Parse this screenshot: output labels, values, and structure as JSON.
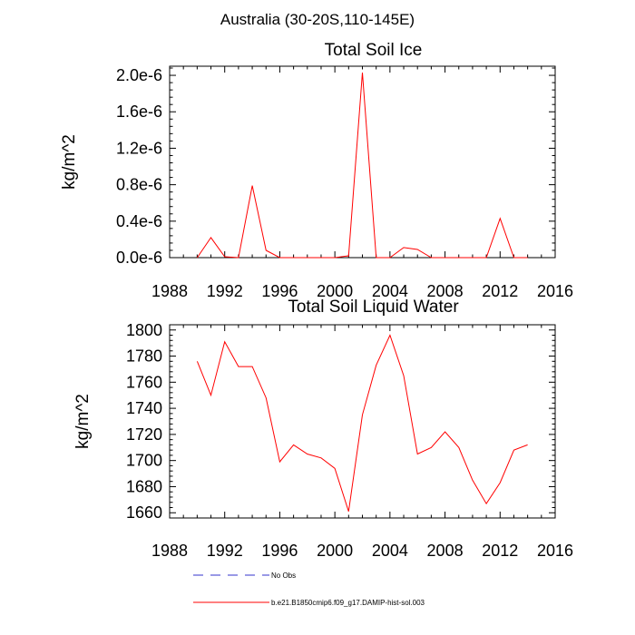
{
  "figure_title": "Australia (30-20S,110-145E)",
  "legend": {
    "entries": [
      {
        "label": "No Obs",
        "color": "#3333cc",
        "style": "dashed"
      },
      {
        "label": "b.e21.B1850cmip6.f09_g17.DAMIP-hist-sol.003",
        "color": "#ff0000",
        "style": "solid"
      }
    ]
  },
  "chart_data": [
    {
      "type": "line",
      "title": "Total Soil Ice",
      "xlabel": "",
      "ylabel": "kg/m^2",
      "xlim": [
        1988,
        2016
      ],
      "ylim": [
        0,
        2.1e-06
      ],
      "x_ticks": [
        1988,
        1992,
        1996,
        2000,
        2004,
        2008,
        2012,
        2016
      ],
      "x_tick_labels": [
        "1988",
        "1992",
        "1996",
        "2000",
        "2004",
        "2008",
        "2012",
        "2016"
      ],
      "y_ticks": [
        0,
        4e-07,
        8e-07,
        1.2e-06,
        1.6e-06,
        2e-06
      ],
      "y_tick_labels": [
        "0.0e-6",
        "0.4e-6",
        "0.8e-6",
        "1.2e-6",
        "1.6e-6",
        "2.0e-6"
      ],
      "grid": false,
      "series": [
        {
          "name": "b.e21.B1850cmip6.f09_g17.DAMIP-hist-sol.003",
          "color": "#ff0000",
          "x": [
            1990,
            1991,
            1992,
            1993,
            1994,
            1995,
            1996,
            1997,
            1998,
            1999,
            2000,
            2001,
            2002,
            2003,
            2004,
            2005,
            2006,
            2007,
            2008,
            2009,
            2010,
            2011,
            2012,
            2013,
            2014
          ],
          "y": [
            0,
            2.2e-07,
            1e-08,
            0,
            7.9e-07,
            8e-08,
            0,
            0,
            0,
            0,
            0,
            2e-08,
            2.03e-06,
            0,
            0,
            1.1e-07,
            9e-08,
            0,
            0,
            0,
            0,
            0,
            4.3e-07,
            0,
            0
          ]
        }
      ]
    },
    {
      "type": "line",
      "title": "Total Soil Liquid Water",
      "xlabel": "",
      "ylabel": "kg/m^2",
      "xlim": [
        1988,
        2016
      ],
      "ylim": [
        1656,
        1804
      ],
      "x_ticks": [
        1988,
        1992,
        1996,
        2000,
        2004,
        2008,
        2012,
        2016
      ],
      "x_tick_labels": [
        "1988",
        "1992",
        "1996",
        "2000",
        "2004",
        "2008",
        "2012",
        "2016"
      ],
      "y_ticks": [
        1660,
        1680,
        1700,
        1720,
        1740,
        1760,
        1780,
        1800
      ],
      "y_tick_labels": [
        "1660",
        "1680",
        "1700",
        "1720",
        "1740",
        "1760",
        "1780",
        "1800"
      ],
      "grid": false,
      "series": [
        {
          "name": "b.e21.B1850cmip6.f09_g17.DAMIP-hist-sol.003",
          "color": "#ff0000",
          "x": [
            1990,
            1991,
            1992,
            1993,
            1994,
            1995,
            1996,
            1997,
            1998,
            1999,
            2000,
            2001,
            2002,
            2003,
            2004,
            2005,
            2006,
            2007,
            2008,
            2009,
            2010,
            2011,
            2012,
            2013,
            2014
          ],
          "y": [
            1776,
            1750,
            1791,
            1772,
            1772,
            1748,
            1699,
            1712,
            1705,
            1702,
            1694,
            1661,
            1735,
            1773,
            1796,
            1765,
            1705,
            1710,
            1722,
            1710,
            1685,
            1667,
            1683,
            1708,
            1712
          ]
        }
      ]
    }
  ]
}
